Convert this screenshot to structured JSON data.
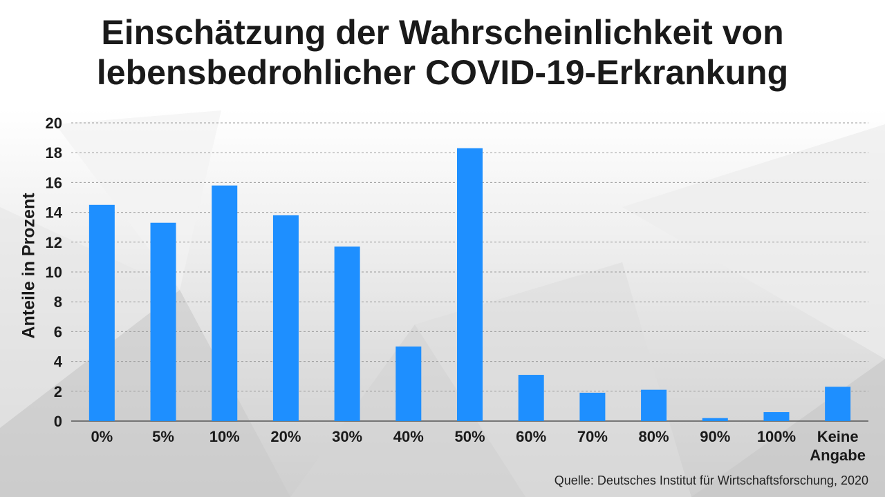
{
  "title_line1": "Einschätzung der Wahrscheinlichkeit von",
  "title_line2": "lebensbedrohlicher COVID-19-Erkrankung",
  "source": "Quelle: Deutsches Institut für Wirtschaftsforschung, 2020",
  "colors": {
    "bar": "#1e8fff",
    "grid": "#9a9a9a",
    "text": "#1a1a1a"
  },
  "chart_data": {
    "type": "bar",
    "title": "Einschätzung der Wahrscheinlichkeit von lebensbedrohlicher COVID-19-Erkrankung",
    "xlabel": "",
    "ylabel": "Anteile in Prozent",
    "categories": [
      "0%",
      "5%",
      "10%",
      "20%",
      "30%",
      "40%",
      "50%",
      "60%",
      "70%",
      "80%",
      "90%",
      "100%",
      "Keine Angabe"
    ],
    "values": [
      14.5,
      13.3,
      15.8,
      13.8,
      11.7,
      5.0,
      18.3,
      3.1,
      1.9,
      2.1,
      0.2,
      0.6,
      2.3
    ],
    "ylim": [
      0,
      20
    ],
    "yticks": [
      0,
      2,
      4,
      6,
      8,
      10,
      12,
      14,
      16,
      18,
      20
    ],
    "grid": true,
    "legend": "none"
  }
}
